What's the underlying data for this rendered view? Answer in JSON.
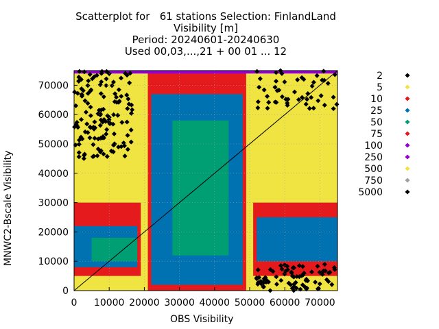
{
  "chart_data": {
    "type": "scatter",
    "title_lines": [
      "Scatterplot for   61 stations Selection: FinlandLand",
      "Visibility [m]",
      "Period: 20240601-20240630",
      "Used 00,03,...,21 + 00 01 ... 12"
    ],
    "xlabel": "OBS Visibility",
    "ylabel": "MNWC2-Bscale Visibility",
    "xlim": [
      0,
      75000
    ],
    "ylim": [
      0,
      75000
    ],
    "x_ticks": [
      "0",
      "10000",
      "20000",
      "30000",
      "40000",
      "50000",
      "60000",
      "70000"
    ],
    "y_ticks": [
      "0",
      "10000",
      "20000",
      "30000",
      "40000",
      "50000",
      "60000",
      "70000"
    ],
    "grid": true,
    "diagonal_line": true,
    "legend": [
      {
        "label": "2",
        "color": "#000000"
      },
      {
        "label": "5",
        "color": "#f0e442"
      },
      {
        "label": "10",
        "color": "#e41a1c"
      },
      {
        "label": "25",
        "color": "#0072b2"
      },
      {
        "label": "50",
        "color": "#009e73"
      },
      {
        "label": "75",
        "color": "#e41a1c"
      },
      {
        "label": "100",
        "color": "#9400d3"
      },
      {
        "label": "250",
        "color": "#9400d3"
      },
      {
        "label": "500",
        "color": "#f0e442"
      },
      {
        "label": "750",
        "color": "#a0a0a0"
      },
      {
        "label": "5000",
        "color": "#000000"
      }
    ],
    "legend_placement": "right",
    "density_regions": [
      {
        "x": [
          0,
          75000
        ],
        "y": [
          0,
          75000
        ],
        "level": "5"
      },
      {
        "x": [
          20000,
          50000
        ],
        "y": [
          0,
          75000
        ],
        "level": "10"
      },
      {
        "x": [
          0,
          20000
        ],
        "y": [
          5000,
          30000
        ],
        "level": "10"
      },
      {
        "x": [
          50000,
          75000
        ],
        "y": [
          5000,
          30000
        ],
        "level": "10"
      },
      {
        "x": [
          22000,
          48000
        ],
        "y": [
          2000,
          67000
        ],
        "level": "25"
      },
      {
        "x": [
          0,
          18000
        ],
        "y": [
          8000,
          22000
        ],
        "level": "25"
      },
      {
        "x": [
          52000,
          75000
        ],
        "y": [
          10000,
          25000
        ],
        "level": "25"
      },
      {
        "x": [
          28000,
          44000
        ],
        "y": [
          12000,
          58000
        ],
        "level": "50"
      },
      {
        "x": [
          5000,
          18000
        ],
        "y": [
          10000,
          18000
        ],
        "level": "50"
      },
      {
        "x": [
          19000,
          21000
        ],
        "y": [
          0,
          75000
        ],
        "level": "500"
      },
      {
        "x": [
          49000,
          51000
        ],
        "y": [
          0,
          75000
        ],
        "level": "500"
      },
      {
        "x": [
          0,
          75000
        ],
        "y": [
          74000,
          75000
        ],
        "level": "100"
      }
    ]
  }
}
